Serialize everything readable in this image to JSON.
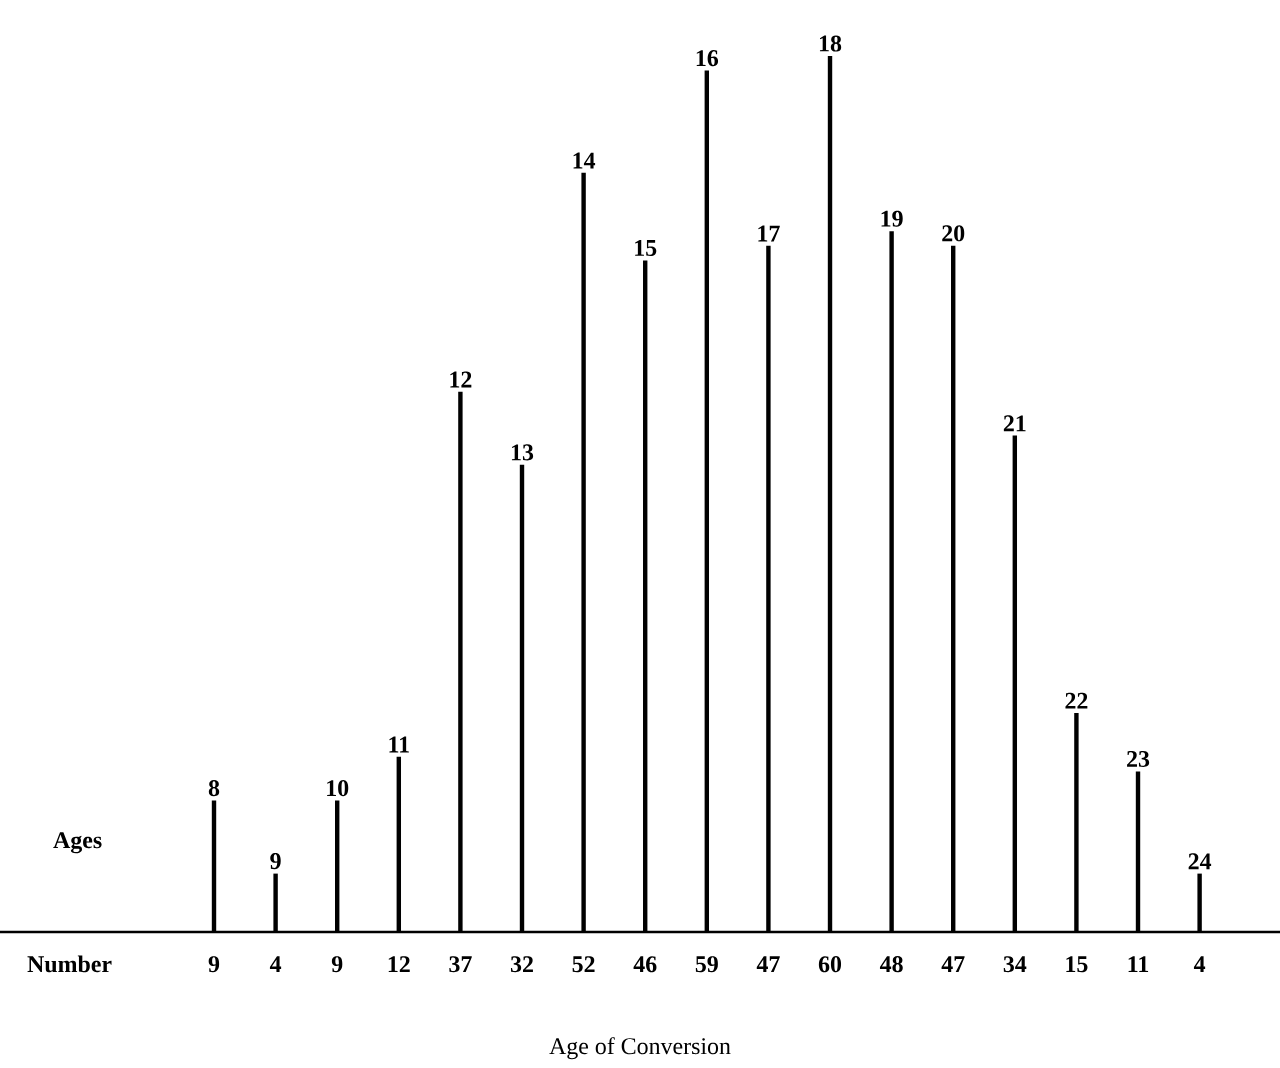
{
  "chart_data": {
    "type": "bar",
    "xlabel": "Age of Conversion",
    "categories": [
      "8",
      "9",
      "10",
      "11",
      "12",
      "13",
      "14",
      "15",
      "16",
      "17",
      "18",
      "19",
      "20",
      "21",
      "22",
      "23",
      "24"
    ],
    "values": [
      9,
      4,
      9,
      12,
      37,
      32,
      52,
      46,
      59,
      47,
      60,
      48,
      47,
      34,
      15,
      11,
      4
    ],
    "color": "#000000",
    "data_labels": true,
    "annotations": [
      "Ages",
      "Number"
    ]
  }
}
